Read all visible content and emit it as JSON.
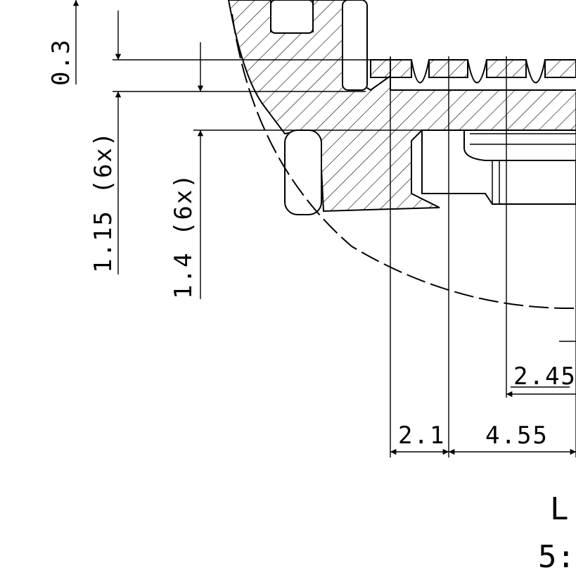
{
  "drawing": {
    "dimensions": {
      "d_0_3": "0.3",
      "d_1_15": "1.15 (6x)",
      "d_1_4": "1.4 (6x)",
      "d_2_45": "2.45",
      "d_2_1": "2.1",
      "d_4_55": "4.55"
    },
    "view_label": "L",
    "scale_label": "5:"
  }
}
